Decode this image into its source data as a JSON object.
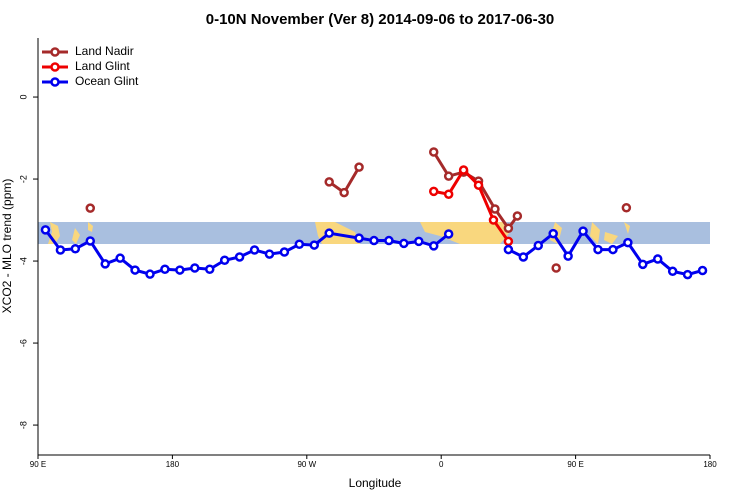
{
  "chart_data": {
    "type": "line",
    "title": "0-10N November (Ver 8)   2014-09-06 to 2017-06-30",
    "x_label": "Longitude",
    "y_label": "XCO2 - MLO trend (ppm)",
    "xlim": [
      90,
      540
    ],
    "ylim": [
      -8.73,
      1.44
    ],
    "xticks": [
      {
        "value": 90,
        "label": "90 E"
      },
      180,
      {
        "value": 270,
        "label": "90 W"
      },
      {
        "value": 360,
        "label": "0"
      },
      {
        "value": 450,
        "label": "90 E"
      },
      {
        "value": 540,
        "label": "180"
      }
    ],
    "yticks": [
      0,
      -2,
      -4,
      -6,
      -8
    ],
    "legend": "top-left",
    "series": [
      {
        "name": "Land Nadir",
        "color": "#a52a2a",
        "x": [
          125,
          205,
          285,
          295,
          305,
          330,
          355,
          365,
          375,
          385,
          396,
          405,
          411,
          425,
          437,
          460,
          484
        ],
        "values": [
          -2.71,
          null,
          -2.07,
          -2.33,
          -1.71,
          null,
          -1.34,
          -1.93,
          -1.83,
          -2.05,
          -2.73,
          -3.2,
          -2.9,
          null,
          -4.17,
          null,
          -2.7
        ]
      },
      {
        "name": "Land Glint",
        "color": "#ee0000",
        "x": [
          355,
          365,
          375,
          385,
          395,
          405
        ],
        "values": [
          -2.3,
          -2.37,
          -1.78,
          -2.15,
          -3.0,
          -3.52
        ]
      },
      {
        "name": "Ocean Glint",
        "color": "#0000ee",
        "x": [
          95,
          105,
          115,
          125,
          135,
          145,
          155,
          165,
          175,
          185,
          195,
          205,
          215,
          225,
          235,
          245,
          255,
          265,
          275,
          285,
          305,
          315,
          325,
          335,
          345,
          355,
          365,
          385,
          405,
          415,
          425,
          435,
          445,
          455,
          465,
          475,
          485,
          495,
          505,
          515,
          525,
          535
        ],
        "values": [
          -3.24,
          -3.73,
          -3.7,
          -3.51,
          -4.07,
          -3.93,
          -4.22,
          -4.32,
          -4.2,
          -4.22,
          -4.17,
          -4.2,
          -3.98,
          -3.9,
          -3.73,
          -3.83,
          -3.78,
          -3.59,
          -3.61,
          -3.32,
          -3.44,
          -3.5,
          -3.5,
          -3.57,
          -3.52,
          -3.63,
          -3.34,
          null,
          -3.72,
          -3.9,
          -3.62,
          -3.33,
          -3.88,
          -3.27,
          -3.72,
          -3.72,
          -3.55,
          -4.08,
          -3.95,
          -4.25,
          -4.33,
          -4.23
        ]
      }
    ]
  }
}
